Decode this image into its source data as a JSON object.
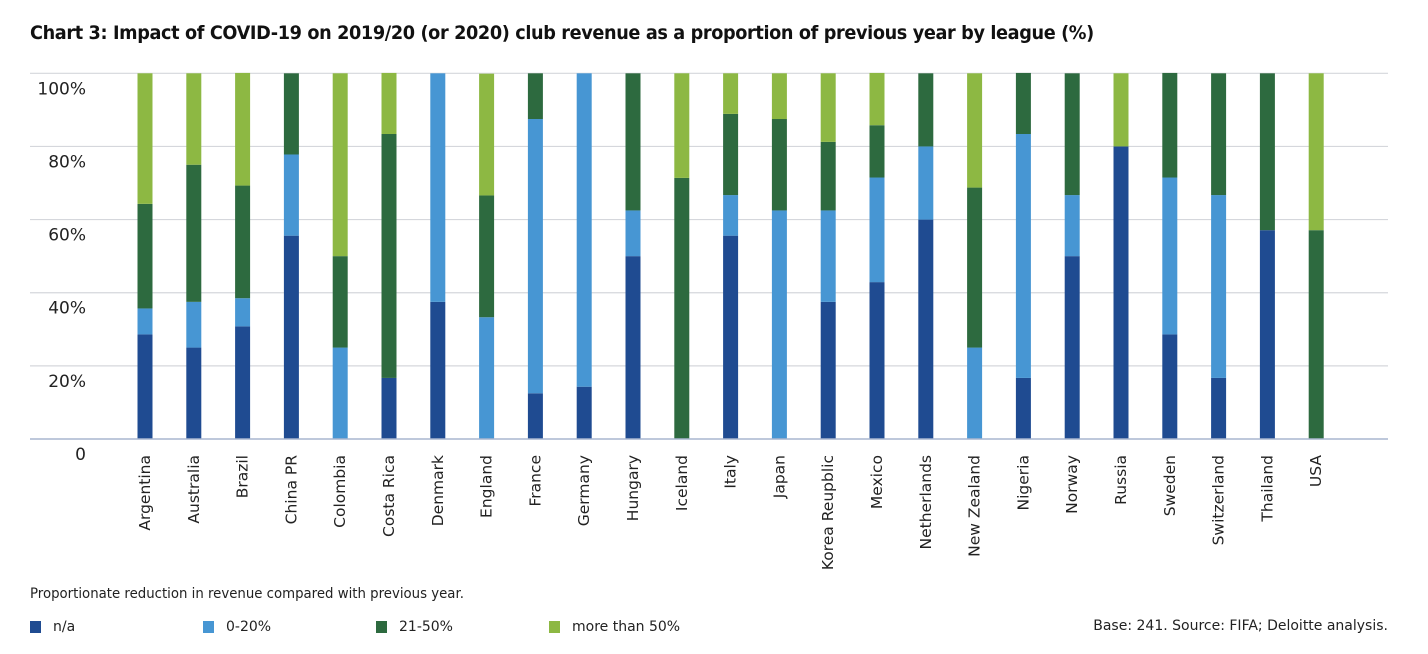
{
  "chart_data": {
    "type": "bar",
    "stacked": true,
    "title": "Chart 3: Impact of COVID-19 on 2019/20 (or 2020) club revenue as a proportion of previous year by league (%)",
    "xlabel": "",
    "ylabel": "",
    "ylim": [
      0,
      100
    ],
    "yticks": [
      0,
      20,
      40,
      60,
      80,
      100
    ],
    "ytick_labels": [
      "0",
      "20%",
      "40%",
      "60%",
      "80%",
      "100%"
    ],
    "grid": true,
    "categories": [
      "Argentina",
      "Australia",
      "Brazil",
      "China PR",
      "Colombia",
      "Costa Rica",
      "Denmark",
      "England",
      "France",
      "Germany",
      "Hungary",
      "Iceland",
      "Italy",
      "Japan",
      "Korea Reupblic",
      "Mexico",
      "Netherlands",
      "New Zealand",
      "Nigeria",
      "Norway",
      "Russia",
      "Sweden",
      "Switzerland",
      "Thailand",
      "USA"
    ],
    "series": [
      {
        "name": "n/a",
        "color": "#1f4b91",
        "values": [
          28.6,
          25,
          30.8,
          55.6,
          0,
          16.7,
          37.5,
          0,
          12.5,
          14.3,
          50,
          0,
          55.6,
          0,
          37.5,
          42.9,
          60,
          0,
          16.7,
          50,
          80,
          28.6,
          16.7,
          57.1,
          0
        ]
      },
      {
        "name": "0-20%",
        "color": "#4796d3",
        "values": [
          7.1,
          12.5,
          7.7,
          22.2,
          25,
          0,
          62.5,
          33.3,
          75,
          85.7,
          12.5,
          0,
          11.1,
          62.5,
          25,
          28.6,
          20,
          25,
          66.7,
          16.7,
          0,
          42.9,
          50,
          0,
          0
        ]
      },
      {
        "name": "21-50%",
        "color": "#2d6a3f",
        "values": [
          28.6,
          37.5,
          30.8,
          22.2,
          25,
          66.7,
          0,
          33.3,
          12.5,
          0,
          37.5,
          71.4,
          22.2,
          25,
          18.75,
          14.3,
          20,
          43.75,
          16.7,
          33.3,
          0,
          28.6,
          33.3,
          42.9,
          57.1
        ]
      },
      {
        "name": "more than 50%",
        "color": "#8db843",
        "values": [
          35.7,
          25,
          30.8,
          0,
          50,
          16.7,
          0,
          33.3,
          0,
          0,
          0,
          28.6,
          11.1,
          12.5,
          18.75,
          14.3,
          0,
          31.25,
          0,
          0,
          20,
          0,
          0,
          0,
          42.9
        ]
      }
    ],
    "legend_title": "Proportionate reduction in revenue compared with previous year.",
    "legend_position": "bottom-left",
    "source": "Base: 241. Source: FIFA; Deloitte analysis."
  },
  "colors": {
    "gridline": "#d5d7dc",
    "axis": "#a9b6cf"
  }
}
